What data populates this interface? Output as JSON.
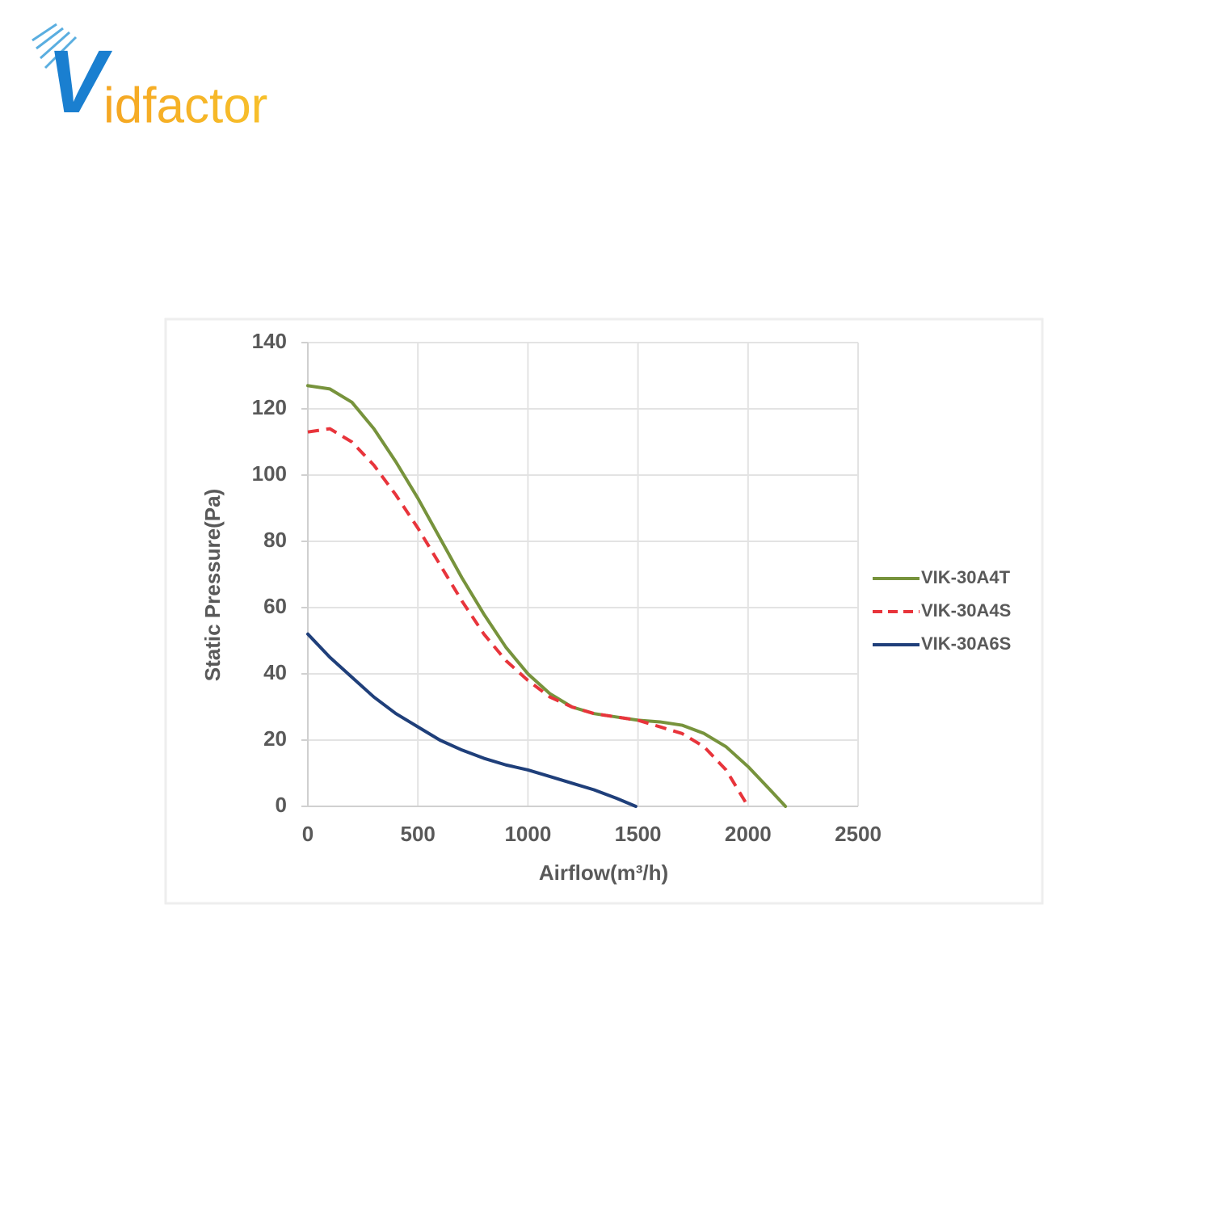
{
  "logo": {
    "initial": "V",
    "rest": "idfactor"
  },
  "chart_data": {
    "type": "line",
    "xlabel": "Airflow(m³/h)",
    "ylabel": "Static Pressure(Pa)",
    "xlim": [
      0,
      2500
    ],
    "xticks": [
      0,
      500,
      1000,
      1500,
      2000,
      2500
    ],
    "ylim": [
      0,
      140
    ],
    "yticks": [
      0,
      20,
      40,
      60,
      80,
      100,
      120,
      140
    ],
    "grid": true,
    "legend": "right",
    "series": [
      {
        "name": "VIK-30A4T",
        "color": "#77933c",
        "dash": false,
        "x": [
          0,
          100,
          200,
          300,
          400,
          500,
          600,
          700,
          800,
          900,
          1000,
          1100,
          1200,
          1300,
          1400,
          1500,
          1600,
          1700,
          1800,
          1900,
          2000,
          2100,
          2170
        ],
        "values": [
          127,
          126,
          122,
          114,
          104,
          93,
          81,
          69,
          58,
          48,
          40,
          34,
          30,
          28,
          27,
          26,
          25.5,
          24.5,
          22,
          18,
          12,
          5,
          0
        ]
      },
      {
        "name": "VIK-30A4S",
        "color": "#e8343b",
        "dash": true,
        "x": [
          0,
          100,
          200,
          300,
          400,
          500,
          600,
          700,
          800,
          900,
          1000,
          1100,
          1200,
          1300,
          1400,
          1500,
          1600,
          1700,
          1800,
          1900,
          2000
        ],
        "values": [
          113,
          114,
          110,
          103,
          94,
          84,
          73,
          62,
          52,
          44,
          38,
          33,
          30,
          28,
          27,
          26,
          24,
          22,
          18,
          11,
          0
        ]
      },
      {
        "name": "VIK-30A6S",
        "color": "#1f3f7a",
        "dash": false,
        "x": [
          0,
          100,
          200,
          300,
          400,
          500,
          600,
          700,
          800,
          900,
          1000,
          1100,
          1200,
          1300,
          1400,
          1490
        ],
        "values": [
          52,
          45,
          39,
          33,
          28,
          24,
          20,
          17,
          14.5,
          12.5,
          11,
          9,
          7,
          5,
          2.5,
          0
        ]
      }
    ]
  }
}
